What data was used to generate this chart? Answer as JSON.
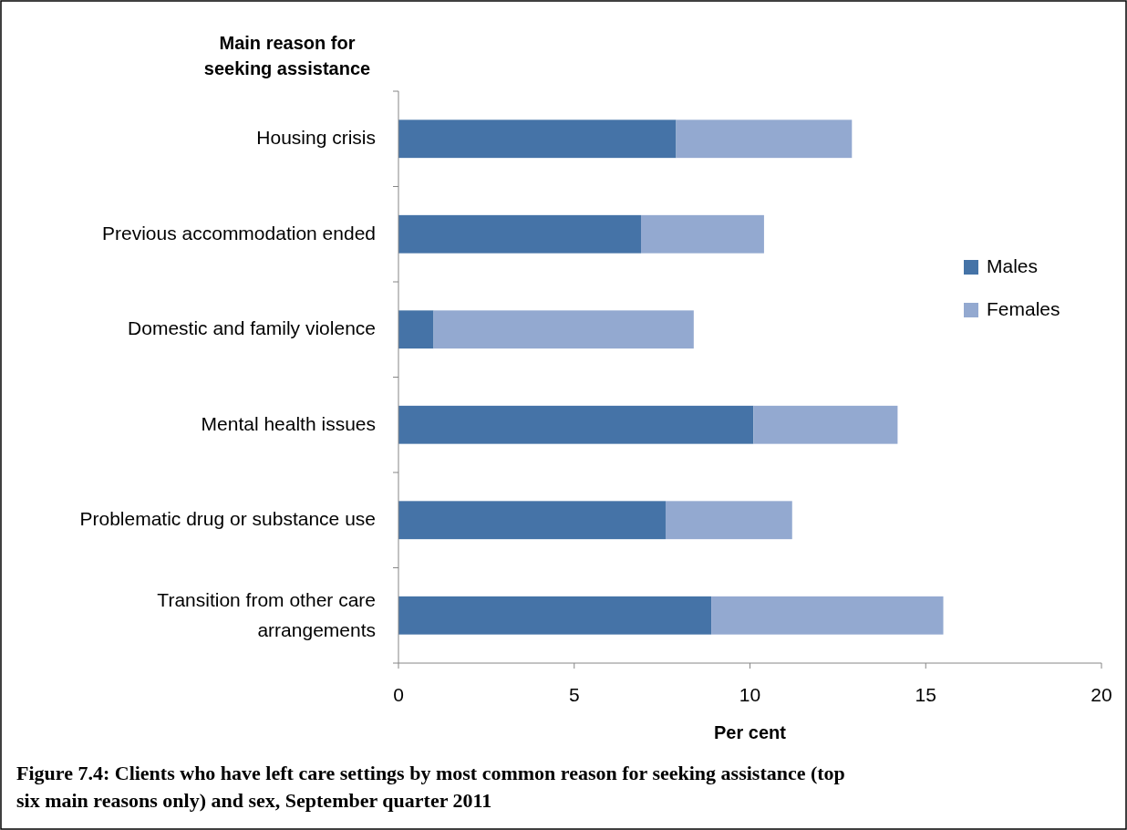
{
  "chart_data": {
    "type": "bar",
    "orientation": "horizontal",
    "stacked": true,
    "title": "Figure 7.4: Clients who have left care settings by most common reason for seeking assistance (top six main reasons only) and sex, September quarter 2011",
    "ylabel": "Main reason for seeking assistance",
    "xlabel": "Per cent",
    "categories": [
      "Housing crisis",
      "Previous accommodation ended",
      "Domestic and family violence",
      "Mental health issues",
      "Problematic drug or substance use",
      "Transition from other care arrangements"
    ],
    "series": [
      {
        "name": "Males",
        "color": "#4573a7",
        "values": [
          7.9,
          6.9,
          1.0,
          10.1,
          7.6,
          8.9
        ]
      },
      {
        "name": "Females",
        "color": "#93a9d0",
        "values": [
          5.0,
          3.5,
          7.4,
          4.1,
          3.6,
          6.6
        ]
      }
    ],
    "xlim": [
      0,
      20
    ],
    "xticks": [
      0,
      5,
      10,
      15,
      20
    ],
    "grid": false,
    "legend": "right"
  }
}
